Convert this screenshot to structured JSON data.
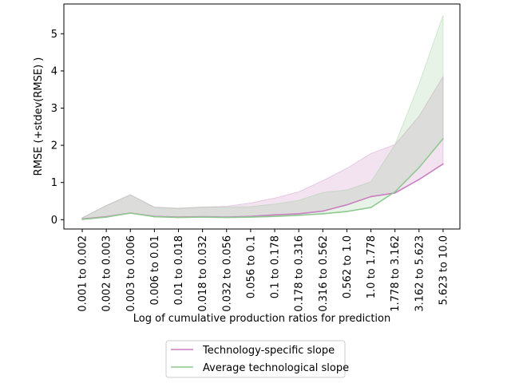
{
  "chart_data": {
    "type": "line",
    "xlabel": "Log of cumulative production ratios for prediction",
    "ylabel": "RMSE (+stdev(RMSE) )",
    "ylim": [
      -0.25,
      5.8
    ],
    "yticks": [
      0,
      1,
      2,
      3,
      4,
      5
    ],
    "grid": false,
    "legend_position": "bottom-center",
    "categories": [
      "0.001 to 0.002",
      "0.002 to 0.003",
      "0.003 to 0.006",
      "0.006 to 0.01",
      "0.01 to 0.018",
      "0.018 to 0.032",
      "0.032 to 0.056",
      "0.056 to 0.1",
      "0.1 to 0.178",
      "0.178 to 0.316",
      "0.316 to 0.562",
      "0.562 to 1.0",
      "1.0 to 1.778",
      "1.778 to 3.162",
      "3.162 to 5.623",
      "5.623 to 10.0"
    ],
    "series": [
      {
        "name": "Technology-specific slope",
        "color": "#c97fc1",
        "values": [
          0.02,
          0.08,
          0.18,
          0.09,
          0.07,
          0.08,
          0.07,
          0.09,
          0.13,
          0.16,
          0.23,
          0.4,
          0.62,
          0.72,
          1.08,
          1.5
        ],
        "upper": [
          0.05,
          0.38,
          0.67,
          0.34,
          0.31,
          0.34,
          0.36,
          0.45,
          0.58,
          0.75,
          1.05,
          1.38,
          1.78,
          2.02,
          2.78,
          3.85
        ]
      },
      {
        "name": "Average technological slope",
        "color": "#8fc98f",
        "values": [
          0.01,
          0.07,
          0.18,
          0.08,
          0.06,
          0.07,
          0.06,
          0.07,
          0.09,
          0.12,
          0.16,
          0.22,
          0.33,
          0.75,
          1.4,
          2.18
        ],
        "upper": [
          0.05,
          0.38,
          0.67,
          0.33,
          0.3,
          0.34,
          0.34,
          0.35,
          0.42,
          0.52,
          0.73,
          0.8,
          1.02,
          2.02,
          3.65,
          5.5
        ]
      }
    ]
  }
}
